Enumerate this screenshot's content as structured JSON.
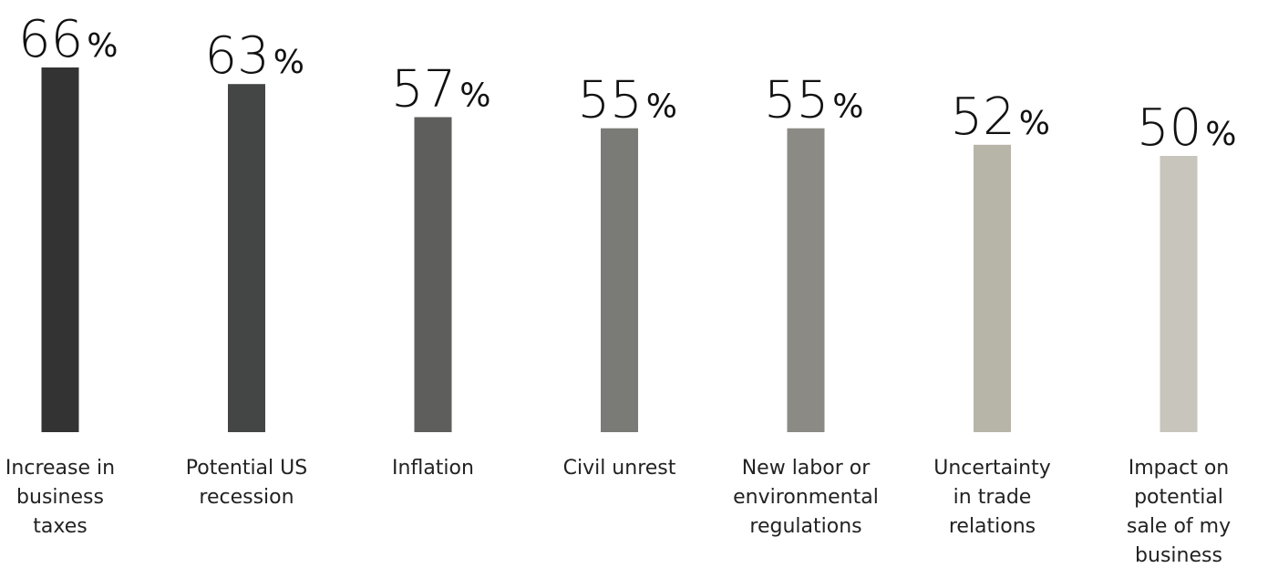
{
  "chart_data": {
    "type": "bar",
    "categories": [
      [
        "Increase in",
        "business",
        "taxes"
      ],
      [
        "Potential US",
        "recession"
      ],
      [
        "Inflation"
      ],
      [
        "Civil unrest"
      ],
      [
        "New labor or",
        "environmental",
        "regulations"
      ],
      [
        "Uncertainty",
        "in trade",
        "relations"
      ],
      [
        "Impact on",
        "potential",
        "sale of my",
        "business"
      ]
    ],
    "values": [
      66,
      63,
      57,
      55,
      55,
      52,
      50
    ],
    "value_suffix": "%",
    "colors": [
      "#333333",
      "#444645",
      "#5e5e5c",
      "#7a7a76",
      "#8b8a85",
      "#b7b5a8",
      "#c8c6bc"
    ],
    "ylim": [
      0,
      66
    ],
    "grid": false,
    "legend": "none"
  }
}
